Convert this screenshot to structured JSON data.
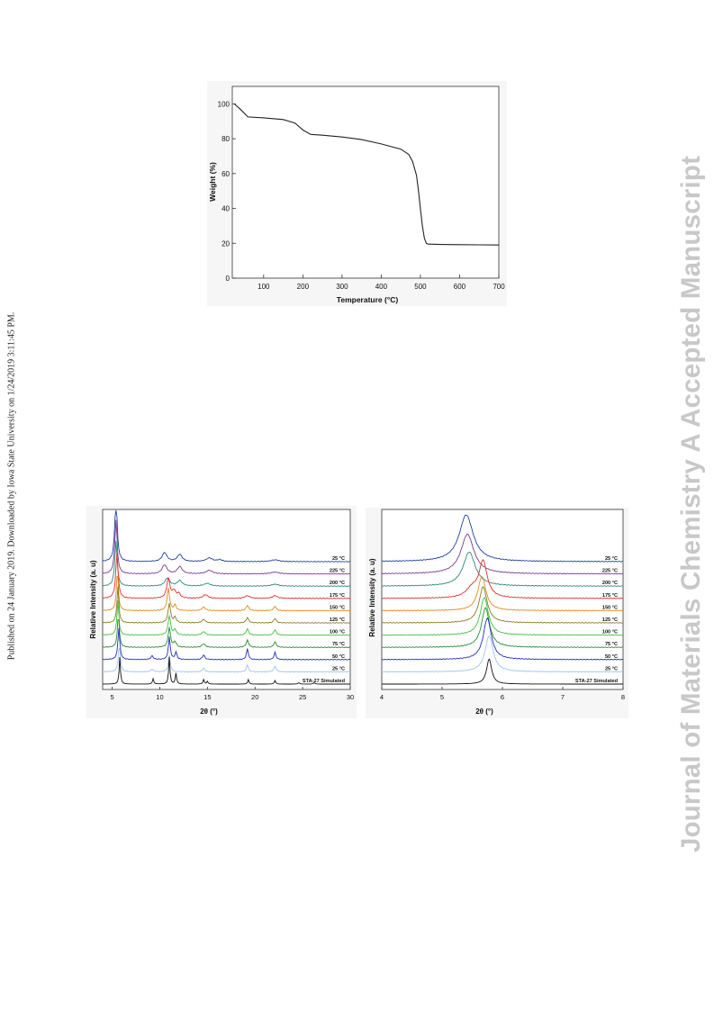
{
  "side_note": "Published on 24 January 2019. Downloaded by Iowa State University on 1/24/2019 3:11:45 PM.",
  "watermark": "Journal of Materials Chemistry A Accepted Manuscript",
  "figures": {
    "tga": {
      "xlabel": "Temperature (°C)",
      "ylabel": "Weight (%)"
    },
    "pxrd": {
      "xlabel": "2θ (°)",
      "ylabel": "Relative Intensity (a. u)"
    },
    "pxrd_zoom": {
      "xlabel": "2θ (°)",
      "ylabel": "Relative Intensity (a. u)"
    }
  },
  "chart_data": [
    {
      "type": "line",
      "x": [
        25,
        40,
        60,
        100,
        150,
        180,
        200,
        220,
        250,
        300,
        350,
        400,
        450,
        470,
        480,
        490,
        495,
        500,
        505,
        510,
        515,
        520,
        550,
        600,
        650,
        700
      ],
      "series": [
        {
          "values": [
            100,
            97,
            92.5,
            92,
            91,
            89,
            85,
            82.5,
            82,
            81,
            79.5,
            77,
            74,
            71,
            67,
            59,
            50,
            40,
            30,
            23,
            20,
            19.5,
            19.3,
            19.2,
            19.1,
            19
          ]
        }
      ],
      "xlim": [
        20,
        700
      ],
      "ylim": [
        0,
        110
      ],
      "xticks": [
        100,
        200,
        300,
        400,
        500,
        600,
        700
      ],
      "yticks": [
        0,
        20,
        40,
        60,
        80,
        100
      ],
      "xlabel": "Temperature (°C)",
      "ylabel": "Weight (%)",
      "grid": false
    },
    {
      "type": "line",
      "xlim": [
        4,
        30
      ],
      "xticks": [
        5,
        10,
        15,
        20,
        25,
        30
      ],
      "xlabel": "2θ (°)",
      "ylabel": "Relative Intensity (a. u)",
      "series": [
        {
          "name": "25 °C",
          "color": "#1f3fa0",
          "peaks": [
            [
              5.4,
              72,
              0.15
            ],
            [
              10.5,
              10,
              0.3
            ],
            [
              12.1,
              8,
              0.3
            ],
            [
              15.2,
              4,
              0.4
            ],
            [
              16.3,
              2,
              0.3
            ],
            [
              22.1,
              2,
              0.5
            ]
          ]
        },
        {
          "name": "225 °C",
          "color": "#7a3a8c",
          "peaks": [
            [
              5.4,
              60,
              0.15
            ],
            [
              10.5,
              10,
              0.3
            ],
            [
              12.1,
              8,
              0.3
            ],
            [
              15.2,
              4,
              0.4
            ],
            [
              22.1,
              2,
              0.5
            ]
          ]
        },
        {
          "name": "200 °C",
          "color": "#2a8a78",
          "peaks": [
            [
              5.4,
              50,
              0.15
            ],
            [
              10.8,
              9,
              0.3
            ],
            [
              12.1,
              6,
              0.3
            ],
            [
              15.0,
              3,
              0.4
            ],
            [
              22.1,
              2,
              0.5
            ]
          ]
        },
        {
          "name": "175 °C",
          "color": "#e03030",
          "peaks": [
            [
              5.5,
              50,
              0.15
            ],
            [
              10.9,
              22,
              0.2
            ],
            [
              11.5,
              8,
              0.2
            ],
            [
              12.0,
              5,
              0.2
            ],
            [
              14.8,
              4,
              0.3
            ],
            [
              19.2,
              3,
              0.3
            ],
            [
              22.1,
              3,
              0.3
            ]
          ]
        },
        {
          "name": "150 °C",
          "color": "#e08a20",
          "peaks": [
            [
              5.55,
              45,
              0.12
            ],
            [
              10.9,
              25,
              0.15
            ],
            [
              11.6,
              6,
              0.15
            ],
            [
              14.6,
              4,
              0.2
            ],
            [
              19.2,
              6,
              0.15
            ],
            [
              22.1,
              5,
              0.15
            ]
          ]
        },
        {
          "name": "125 °C",
          "color": "#8c7a20",
          "peaks": [
            [
              5.6,
              40,
              0.12
            ],
            [
              11.0,
              22,
              0.15
            ],
            [
              11.6,
              6,
              0.15
            ],
            [
              14.6,
              4,
              0.2
            ],
            [
              19.2,
              6,
              0.15
            ],
            [
              22.1,
              5,
              0.15
            ]
          ]
        },
        {
          "name": "100 °C",
          "color": "#40c040",
          "peaks": [
            [
              5.6,
              38,
              0.12
            ],
            [
              11.0,
              22,
              0.15
            ],
            [
              11.6,
              6,
              0.15
            ],
            [
              14.6,
              4,
              0.2
            ],
            [
              19.2,
              7,
              0.15
            ],
            [
              22.1,
              6,
              0.15
            ]
          ]
        },
        {
          "name": "75 °C",
          "color": "#2a8a30",
          "peaks": [
            [
              5.65,
              36,
              0.12
            ],
            [
              11.0,
              22,
              0.15
            ],
            [
              11.6,
              6,
              0.15
            ],
            [
              14.6,
              4,
              0.2
            ],
            [
              19.2,
              8,
              0.15
            ],
            [
              22.1,
              6,
              0.15
            ]
          ]
        },
        {
          "name": "50 °C",
          "color": "#2030c0",
          "peaks": [
            [
              5.7,
              35,
              0.12
            ],
            [
              9.2,
              4,
              0.15
            ],
            [
              11.0,
              25,
              0.12
            ],
            [
              11.7,
              8,
              0.12
            ],
            [
              14.6,
              5,
              0.15
            ],
            [
              19.2,
              12,
              0.12
            ],
            [
              22.1,
              8,
              0.12
            ]
          ]
        },
        {
          "name": "25 °C",
          "color": "#9ec4ea",
          "peaks": [
            [
              5.75,
              30,
              0.12
            ],
            [
              9.2,
              3,
              0.15
            ],
            [
              11.0,
              18,
              0.12
            ],
            [
              14.6,
              4,
              0.15
            ],
            [
              19.2,
              8,
              0.12
            ],
            [
              22.1,
              6,
              0.15
            ]
          ]
        },
        {
          "name": "STA-27 Simulated",
          "color": "#111111",
          "peaks": [
            [
              5.8,
              30,
              0.08
            ],
            [
              9.3,
              6,
              0.08
            ],
            [
              11.0,
              30,
              0.08
            ],
            [
              11.7,
              12,
              0.08
            ],
            [
              14.6,
              5,
              0.08
            ],
            [
              15.0,
              3,
              0.08
            ],
            [
              19.3,
              5,
              0.08
            ],
            [
              22.1,
              4,
              0.08
            ],
            [
              24.6,
              1.5,
              0.1
            ],
            [
              26.2,
              1.5,
              0.1
            ]
          ]
        }
      ]
    },
    {
      "type": "line",
      "xlim": [
        4,
        8
      ],
      "xticks": [
        4,
        5,
        6,
        7,
        8
      ],
      "xlabel": "2θ (°)",
      "ylabel": "Relative Intensity (a. u)",
      "series": [
        {
          "name": "25 °C",
          "color": "#1f3fa0",
          "peaks": [
            [
              5.4,
              52,
              0.14
            ]
          ]
        },
        {
          "name": "225 °C",
          "color": "#7a3a8c",
          "peaks": [
            [
              5.42,
              44,
              0.13
            ]
          ]
        },
        {
          "name": "200 °C",
          "color": "#2a8a78",
          "peaks": [
            [
              5.45,
              38,
              0.12
            ]
          ]
        },
        {
          "name": "175 °C",
          "color": "#e03030",
          "peaks": [
            [
              5.68,
              40,
              0.08
            ],
            [
              5.5,
              10,
              0.12
            ]
          ]
        },
        {
          "name": "150 °C",
          "color": "#e08a20",
          "peaks": [
            [
              5.66,
              38,
              0.08
            ]
          ]
        },
        {
          "name": "125 °C",
          "color": "#8c7a20",
          "peaks": [
            [
              5.68,
              40,
              0.08
            ]
          ]
        },
        {
          "name": "100 °C",
          "color": "#40c040",
          "peaks": [
            [
              5.7,
              42,
              0.08
            ]
          ]
        },
        {
          "name": "75 °C",
          "color": "#2a8a30",
          "peaks": [
            [
              5.72,
              44,
              0.08
            ]
          ]
        },
        {
          "name": "50 °C",
          "color": "#2030c0",
          "peaks": [
            [
              5.75,
              46,
              0.08
            ]
          ]
        },
        {
          "name": "25 °C",
          "color": "#9ec4ea",
          "peaks": [
            [
              5.78,
              40,
              0.08
            ]
          ]
        },
        {
          "name": "STA-27 Simulated",
          "color": "#111111",
          "peaks": [
            [
              5.78,
              28,
              0.05
            ]
          ]
        }
      ]
    }
  ]
}
